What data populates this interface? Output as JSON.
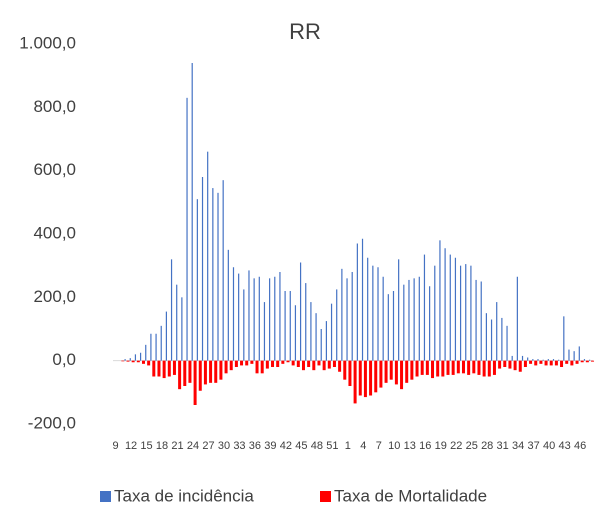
{
  "chart_data": {
    "type": "bar",
    "title": "RR",
    "categories": [
      "9",
      null,
      null,
      "12",
      null,
      null,
      "15",
      null,
      null,
      "18",
      null,
      null,
      "21",
      null,
      null,
      "24",
      null,
      null,
      "27",
      null,
      null,
      "30",
      null,
      null,
      "33",
      null,
      null,
      "36",
      null,
      null,
      "39",
      null,
      null,
      "42",
      null,
      null,
      "45",
      null,
      null,
      "48",
      null,
      null,
      "51",
      null,
      null,
      "1",
      null,
      null,
      "4",
      null,
      null,
      "7",
      null,
      null,
      "10",
      null,
      null,
      "13",
      null,
      null,
      "16",
      null,
      null,
      "19",
      null,
      null,
      "22",
      null,
      null,
      "25",
      null,
      null,
      "28",
      null,
      null,
      "31",
      null,
      null,
      "34",
      null,
      null,
      "37",
      null,
      null,
      "40",
      null,
      null,
      "43",
      null,
      null,
      "46",
      null,
      null
    ],
    "series": [
      {
        "name": "Taxa de incidência",
        "color": "#4472c4",
        "values": [
          0,
          0,
          5,
          8,
          20,
          25,
          50,
          85,
          85,
          110,
          155,
          320,
          240,
          200,
          830,
          940,
          510,
          580,
          660,
          545,
          530,
          570,
          350,
          295,
          275,
          225,
          285,
          260,
          265,
          185,
          260,
          265,
          280,
          220,
          220,
          175,
          310,
          245,
          185,
          150,
          100,
          125,
          180,
          225,
          290,
          260,
          280,
          370,
          385,
          325,
          300,
          295,
          265,
          210,
          220,
          320,
          240,
          255,
          260,
          265,
          335,
          235,
          300,
          380,
          355,
          335,
          325,
          300,
          305,
          300,
          255,
          250,
          150,
          130,
          185,
          135,
          110,
          15,
          265,
          15,
          10,
          5,
          5,
          3,
          5,
          5,
          3,
          140,
          35,
          30,
          45,
          5,
          3
        ]
      },
      {
        "name": "Taxa de Mortalidade",
        "color": "#ff0000",
        "values": [
          0,
          -2,
          -3,
          -5,
          -5,
          -10,
          -15,
          -50,
          -50,
          -55,
          -50,
          -45,
          -90,
          -80,
          -70,
          -140,
          -95,
          -75,
          -70,
          -70,
          -60,
          -40,
          -30,
          -20,
          -15,
          -15,
          -10,
          -40,
          -40,
          -25,
          -20,
          -20,
          -10,
          -5,
          -15,
          -20,
          -30,
          -20,
          -30,
          -15,
          -30,
          -25,
          -20,
          -35,
          -60,
          -80,
          -135,
          -110,
          -115,
          -110,
          -100,
          -85,
          -70,
          -60,
          -75,
          -90,
          -70,
          -60,
          -50,
          -45,
          -45,
          -55,
          -50,
          -50,
          -45,
          -45,
          -40,
          -40,
          -45,
          -40,
          -45,
          -50,
          -50,
          -45,
          -25,
          -20,
          -25,
          -30,
          -35,
          -20,
          -10,
          -15,
          -10,
          -15,
          -15,
          -15,
          -20,
          -10,
          -15,
          -10,
          -5,
          -5,
          -3
        ]
      }
    ],
    "ylim": [
      -200,
      1000
    ],
    "yticks": [
      {
        "value": -200,
        "label": "-200,0"
      },
      {
        "value": 0,
        "label": "0,0"
      },
      {
        "value": 200,
        "label": "200,0"
      },
      {
        "value": 400,
        "label": "400,0"
      },
      {
        "value": 600,
        "label": "600,0"
      },
      {
        "value": 800,
        "label": "800,0"
      },
      {
        "value": 1000,
        "label": "1.000,0"
      }
    ],
    "grid": false,
    "legend": "bottom"
  }
}
